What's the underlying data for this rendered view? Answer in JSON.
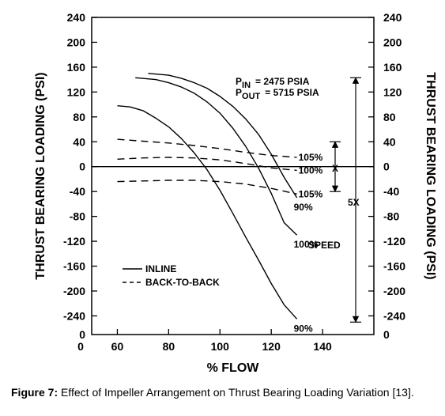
{
  "chart_data": {
    "type": "line",
    "xlabel": "% FLOW",
    "ylabel_left": "THRUST BEARING LOADING (PSI)",
    "ylabel_right": "THRUST BEARING LOADING (PSI)",
    "xlim": [
      50,
      160
    ],
    "ylim": [
      -270,
      240
    ],
    "x_ticks": [
      60,
      80,
      100,
      120,
      140
    ],
    "y_ticks": [
      240,
      200,
      160,
      120,
      80,
      40,
      0,
      -40,
      -80,
      -120,
      -160,
      -200,
      -240
    ],
    "x_origin_label": "0",
    "y_bottom_label": "0",
    "grid": false,
    "series": [
      {
        "style": "solid",
        "label": "90%",
        "x": [
          60,
          65,
          70,
          75,
          80,
          85,
          90,
          95,
          100,
          105,
          110,
          115,
          120,
          125,
          130
        ],
        "y": [
          98,
          96,
          90,
          78,
          64,
          45,
          22,
          -5,
          -38,
          -75,
          -113,
          -150,
          -188,
          -222,
          -245
        ]
      },
      {
        "style": "solid",
        "label": "100%",
        "x": [
          67,
          75,
          80,
          85,
          90,
          95,
          100,
          105,
          110,
          115,
          120,
          125,
          130
        ],
        "y": [
          143,
          140,
          135,
          128,
          118,
          104,
          86,
          62,
          33,
          -2,
          -43,
          -90,
          -110
        ]
      },
      {
        "style": "solid",
        "label": "90%",
        "x": [
          72,
          80,
          85,
          90,
          95,
          100,
          105,
          110,
          115,
          120,
          125,
          130
        ],
        "y": [
          150,
          147,
          142,
          135,
          126,
          113,
          97,
          77,
          52,
          20,
          -17,
          -50
        ]
      },
      {
        "style": "dashed",
        "label": "105%",
        "x": [
          60,
          70,
          80,
          90,
          100,
          110,
          120,
          130
        ],
        "y": [
          44,
          41,
          38,
          34,
          29,
          23,
          18,
          15
        ]
      },
      {
        "style": "dashed",
        "label": "100%",
        "x": [
          60,
          70,
          80,
          90,
          100,
          110,
          120,
          130
        ],
        "y": [
          12,
          14,
          15,
          14,
          11,
          5,
          -2,
          -6
        ]
      },
      {
        "style": "dashed",
        "label": "105%",
        "x": [
          60,
          70,
          80,
          90,
          100,
          110,
          120,
          130
        ],
        "y": [
          -24,
          -23,
          -22,
          -22,
          -24,
          -28,
          -35,
          -44
        ]
      }
    ],
    "legend": [
      {
        "style": "solid",
        "label": "INLINE"
      },
      {
        "style": "dashed",
        "label": "BACK-TO-BACK"
      }
    ],
    "annotations": {
      "p_in": {
        "sym": "P",
        "sub": "IN",
        "value": "= 2475 PSIA"
      },
      "p_out": {
        "sym": "P",
        "sub": "OUT",
        "value": "= 5715 PSIA"
      },
      "x_label": "X",
      "fivex_label": "5X",
      "speed_label": "SPEED"
    }
  },
  "caption": {
    "label": "Figure 7:",
    "text": " Effect of Impeller Arrangement on Thrust Bearing Loading Variation [13]."
  }
}
